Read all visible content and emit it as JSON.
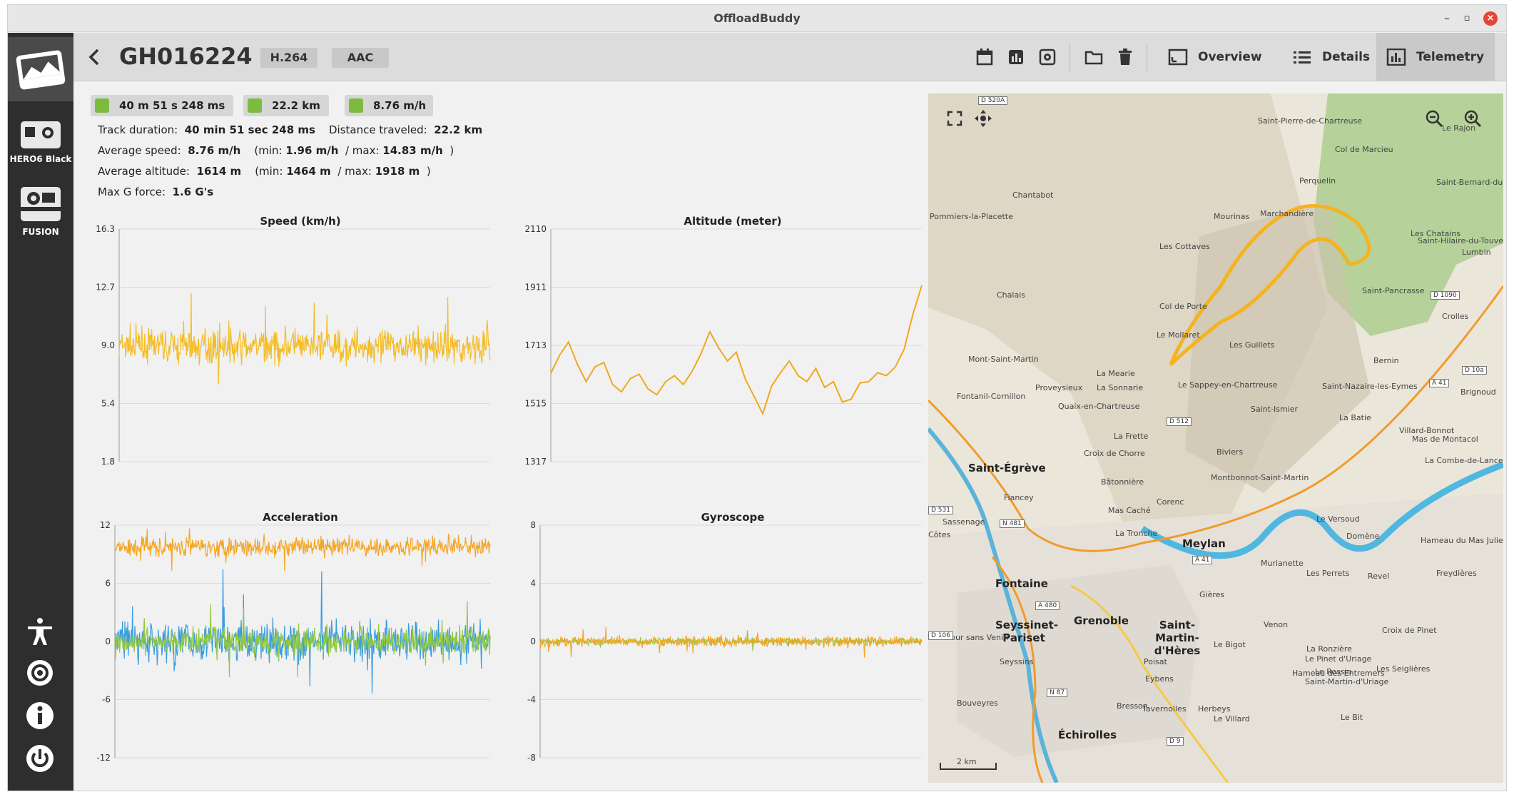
{
  "window": {
    "title": "OffloadBuddy",
    "minimize": "–",
    "maximize": "▫",
    "close": "×"
  },
  "sidebar": {
    "cameras": [
      {
        "label": "HERO6 Black"
      },
      {
        "label": "FUSION"
      }
    ],
    "bottom_icons": [
      "accessibility-icon",
      "gear-icon",
      "info-icon",
      "power-icon"
    ]
  },
  "toolbar": {
    "title": "GH016224",
    "codec_video": "H.264",
    "codec_audio": "AAC",
    "tabs": [
      {
        "label": "Overview",
        "icon": "overview-icon"
      },
      {
        "label": "Details",
        "icon": "list-icon"
      },
      {
        "label": "Telemetry",
        "icon": "chart-icon",
        "active": true
      }
    ]
  },
  "summary": {
    "duration_chip": "40 m 51 s 248 ms",
    "distance_chip": "22.2 km",
    "speed_chip": "8.76 m/h",
    "track_duration_label": "Track duration:",
    "track_duration_value": "40 min 51 sec 248 ms",
    "distance_label": "Distance traveled:",
    "distance_value": "22.2 km",
    "avg_speed_label": "Average speed:",
    "avg_speed_value": "8.76 m/h",
    "avg_speed_min_label": "(min:",
    "avg_speed_min": "1.96 m/h",
    "avg_speed_max_label": "/ max:",
    "avg_speed_max": "14.83 m/h",
    "close_paren": ")",
    "avg_alt_label": "Average altitude:",
    "avg_alt_value": "1614 m",
    "avg_alt_min_label": "(min:",
    "avg_alt_min": "1464 m",
    "avg_alt_max_label": "/ max:",
    "avg_alt_max": "1918 m",
    "gforce_label": "Max G force:",
    "gforce_value": "1.6 G's"
  },
  "chart_data": [
    {
      "type": "line",
      "title": "Speed (km/h)",
      "ylim": [
        1.8,
        16.3
      ],
      "yticks": [
        "16.3",
        "12.7",
        "9.0",
        "5.4",
        "1.8"
      ],
      "series": [
        {
          "color": "#f5bd25",
          "style": "noisy",
          "mean": 9.0,
          "spread": 2.3
        }
      ]
    },
    {
      "type": "line",
      "title": "Altitude (meter)",
      "ylim": [
        1317,
        2110
      ],
      "yticks": [
        "2110",
        "1911",
        "1713",
        "1515",
        "1317"
      ],
      "series": [
        {
          "color": "#f1a81c",
          "values": [
            1618,
            1680,
            1725,
            1650,
            1590,
            1640,
            1655,
            1580,
            1555,
            1600,
            1615,
            1565,
            1545,
            1590,
            1610,
            1580,
            1625,
            1685,
            1760,
            1705,
            1660,
            1690,
            1600,
            1540,
            1480,
            1575,
            1620,
            1660,
            1610,
            1590,
            1635,
            1570,
            1590,
            1520,
            1530,
            1585,
            1590,
            1620,
            1610,
            1640,
            1700,
            1820,
            1918
          ]
        }
      ]
    },
    {
      "type": "line",
      "title": "Acceleration",
      "ylim": [
        -12,
        12
      ],
      "yticks": [
        "12",
        "6",
        "0",
        "-6",
        "-12"
      ],
      "series": [
        {
          "color": "#3a9de0",
          "style": "noisy",
          "mean": 0,
          "spread": 4.5
        },
        {
          "color": "#90c840",
          "style": "noisy",
          "mean": 0,
          "spread": 3.0
        },
        {
          "color": "#f5a623",
          "style": "noisy",
          "mean": 9.8,
          "spread": 2.2
        }
      ]
    },
    {
      "type": "line",
      "title": "Gyroscope",
      "ylim": [
        -8,
        8
      ],
      "yticks": [
        "8",
        "4",
        "0",
        "-4",
        "-8"
      ],
      "series": [
        {
          "color": "#90c840",
          "style": "noisy",
          "mean": 0,
          "spread": 0.5
        },
        {
          "color": "#f5a623",
          "style": "noisy",
          "mean": 0,
          "spread": 0.8
        }
      ]
    }
  ],
  "map": {
    "scale": "2 km",
    "cities": [
      "Grenoble",
      "Saint-Égrève",
      "Meylan",
      "Saint-Martin-d'Hères",
      "Échirolles",
      "Fontaine",
      "Seyssinet-Pariset"
    ],
    "places": [
      "Saint-Pierre-de-Chartreuse",
      "Col de Marcieu",
      "Le Rajon",
      "Saint-Bernard-du-Touvet",
      "Perquelin",
      "Mourinas",
      "Chantabot",
      "Pommiers-la-Placette",
      "Marchandière",
      "Les Cottaves",
      "Les Chatains",
      "Saint-Hilaire-du-Touvet",
      "Lumbin",
      "Chalais",
      "Col de Porte",
      "Saint-Pancrasse",
      "Crolles",
      "Le Mollaret",
      "Les Guillets",
      "Mont-Saint-Martin",
      "La Mearie",
      "Bernin",
      "Proveysieux",
      "La Sonnarie",
      "Le Sappey-en-Chartreuse",
      "Saint-Nazaire-les-Eymes",
      "Brignoud",
      "Fontanil-Cornillon",
      "Quaix-en-Chartreuse",
      "Saint-Ismier",
      "La Frette",
      "La Batie",
      "Villard-Bonnot",
      "Croix de Chorre",
      "Biviers",
      "Mas de Montacol",
      "Bâtonnière",
      "Montbonnot-Saint-Martin",
      "La Combe-de-Lancey",
      "Fiancey",
      "Corenc",
      "Côtes",
      "Mas Caché",
      "Le Versoud",
      "Sassenage",
      "La Tronche",
      "Domène",
      "Hameau du Mas Julien",
      "Murianette",
      "Les Perrets",
      "Revel",
      "Freydières",
      "Gières",
      "La Tour sans Venin",
      "Venon",
      "Croix de Pinet",
      "La Ronzière",
      "Le Pinet d'Uriage",
      "Seyssins",
      "Poisat",
      "Le Bigot",
      "Hameau des Entremers",
      "Le Rossin",
      "Les Seiglières",
      "Eybens",
      "Saint-Martin-d'Uriage",
      "Bouveyres",
      "Bresson",
      "Tavernolles",
      "Herbeys",
      "Le Villard",
      "Le Bit"
    ],
    "roads": [
      "D 520A",
      "D 1090",
      "A 41",
      "D 10a",
      "D 512",
      "D 531",
      "N 481",
      "A 480",
      "N 87",
      "A 41",
      "D 9",
      "D 106"
    ]
  }
}
